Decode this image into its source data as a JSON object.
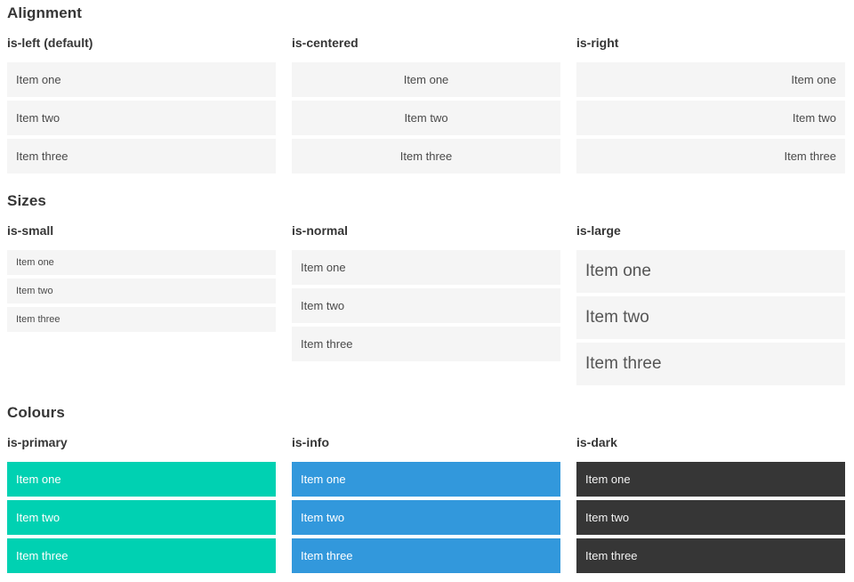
{
  "colors": {
    "primary": "#00d1b2",
    "info": "#3298dc",
    "dark": "#363636",
    "item_background": "#f5f5f5",
    "item_text": "#4a4a4a",
    "heading_text": "#363636"
  },
  "sections": [
    {
      "title": "Alignment",
      "columns": [
        {
          "label": "is-left (default)",
          "items": [
            "Item one",
            "Item two",
            "Item three"
          ]
        },
        {
          "label": "is-centered",
          "items": [
            "Item one",
            "Item two",
            "Item three"
          ]
        },
        {
          "label": "is-right",
          "items": [
            "Item one",
            "Item two",
            "Item three"
          ]
        }
      ]
    },
    {
      "title": "Sizes",
      "columns": [
        {
          "label": "is-small",
          "items": [
            "Item one",
            "Item two",
            "Item three"
          ]
        },
        {
          "label": "is-normal",
          "items": [
            "Item one",
            "Item two",
            "Item three"
          ]
        },
        {
          "label": "is-large",
          "items": [
            "Item one",
            "Item two",
            "Item three"
          ]
        }
      ]
    },
    {
      "title": "Colours",
      "columns": [
        {
          "label": "is-primary",
          "items": [
            "Item one",
            "Item two",
            "Item three"
          ]
        },
        {
          "label": "is-info",
          "items": [
            "Item one",
            "Item two",
            "Item three"
          ]
        },
        {
          "label": "is-dark",
          "items": [
            "Item one",
            "Item two",
            "Item three"
          ]
        }
      ]
    }
  ]
}
